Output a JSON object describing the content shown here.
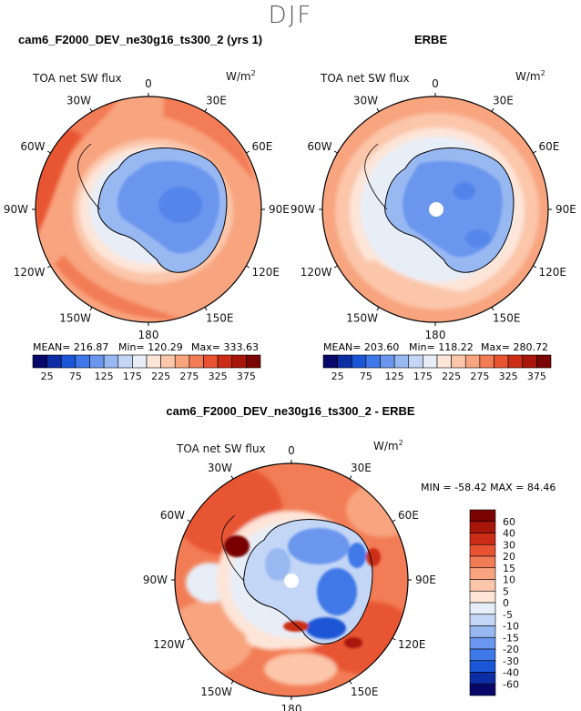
{
  "page": {
    "season": "DJF",
    "bottom_title": "cam6_F2000_DEV_ne30g16_ts300_2 - ERBE"
  },
  "chart_data": [
    {
      "type": "heatmap",
      "projection": "south-polar-stereographic",
      "title": "cam6_F2000_DEV_ne30g16_ts300_2 (yrs 1)",
      "field_label": "TOA net SW flux",
      "units_base": "W/m",
      "units_exp": "2",
      "longitude_labels": [
        "0",
        "30E",
        "60E",
        "90E",
        "120E",
        "150E",
        "180",
        "150W",
        "120W",
        "90W",
        "60W",
        "30W"
      ],
      "stats": {
        "mean": "MEAN= 216.87",
        "min": "Min= 120.29",
        "max": "Max= 333.63"
      },
      "colorbar": {
        "orientation": "horizontal",
        "levels": [
          25,
          50,
          75,
          100,
          125,
          150,
          175,
          200,
          225,
          250,
          275,
          300,
          325,
          350,
          375
        ],
        "tick_labels": [
          "25",
          "75",
          "125",
          "175",
          "225",
          "275",
          "325",
          "375"
        ],
        "colors": [
          "#08086b",
          "#0c2da4",
          "#1a56d6",
          "#3f78e8",
          "#6b96ee",
          "#98b8f2",
          "#c4d6f6",
          "#e8eef8",
          "#fde5d8",
          "#fbc6aa",
          "#f8a47f",
          "#f27c55",
          "#e85431",
          "#cc2d17",
          "#a8150a",
          "#7a0303"
        ]
      },
      "field_summary": {
        "mean": 216.87,
        "min": 120.29,
        "max": 333.63
      }
    },
    {
      "type": "heatmap",
      "projection": "south-polar-stereographic",
      "title": "ERBE",
      "field_label": "TOA net SW flux",
      "units_base": "W/m",
      "units_exp": "2",
      "longitude_labels": [
        "0",
        "30E",
        "60E",
        "90E",
        "120E",
        "150E",
        "180",
        "150W",
        "120W",
        "90W",
        "60W",
        "30W"
      ],
      "stats": {
        "mean": "MEAN= 203.60",
        "min": "Min= 118.22",
        "max": "Max= 280.72"
      },
      "colorbar": {
        "orientation": "horizontal",
        "levels": [
          25,
          50,
          75,
          100,
          125,
          150,
          175,
          200,
          225,
          250,
          275,
          300,
          325,
          350,
          375
        ],
        "tick_labels": [
          "25",
          "75",
          "125",
          "175",
          "225",
          "275",
          "325",
          "375"
        ],
        "colors": [
          "#08086b",
          "#0c2da4",
          "#1a56d6",
          "#3f78e8",
          "#6b96ee",
          "#98b8f2",
          "#c4d6f6",
          "#e8eef8",
          "#fde5d8",
          "#fbc6aa",
          "#f8a47f",
          "#f27c55",
          "#e85431",
          "#cc2d17",
          "#a8150a",
          "#7a0303"
        ]
      },
      "field_summary": {
        "mean": 203.6,
        "min": 118.22,
        "max": 280.72
      }
    },
    {
      "type": "heatmap",
      "projection": "south-polar-stereographic",
      "title": "cam6_F2000_DEV_ne30g16_ts300_2 - ERBE",
      "field_label": "TOA net SW flux",
      "units_base": "W/m",
      "units_exp": "2",
      "longitude_labels": [
        "0",
        "30E",
        "60E",
        "90E",
        "120E",
        "150E",
        "180",
        "150W",
        "120W",
        "90W",
        "60W",
        "30W"
      ],
      "stats": {
        "minmax": "MIN = -58.42  MAX =  84.46"
      },
      "colorbar": {
        "orientation": "vertical",
        "levels": [
          60,
          40,
          30,
          20,
          15,
          10,
          5,
          0,
          -5,
          -10,
          -15,
          -20,
          -30,
          -40,
          -60
        ],
        "tick_labels": [
          "60",
          "40",
          "30",
          "20",
          "15",
          "10",
          "5",
          "0",
          "-5",
          "-10",
          "-15",
          "-20",
          "-30",
          "-40",
          "-60"
        ],
        "colors": [
          "#7a0303",
          "#a8150a",
          "#cc2d17",
          "#e85431",
          "#f27c55",
          "#f8a47f",
          "#fbc6aa",
          "#fde5d8",
          "#e8eef8",
          "#c4d6f6",
          "#98b8f2",
          "#6b96ee",
          "#3f78e8",
          "#1a56d6",
          "#0c2da4",
          "#08086b"
        ]
      },
      "field_summary": {
        "min": -58.42,
        "max": 84.46
      }
    }
  ]
}
